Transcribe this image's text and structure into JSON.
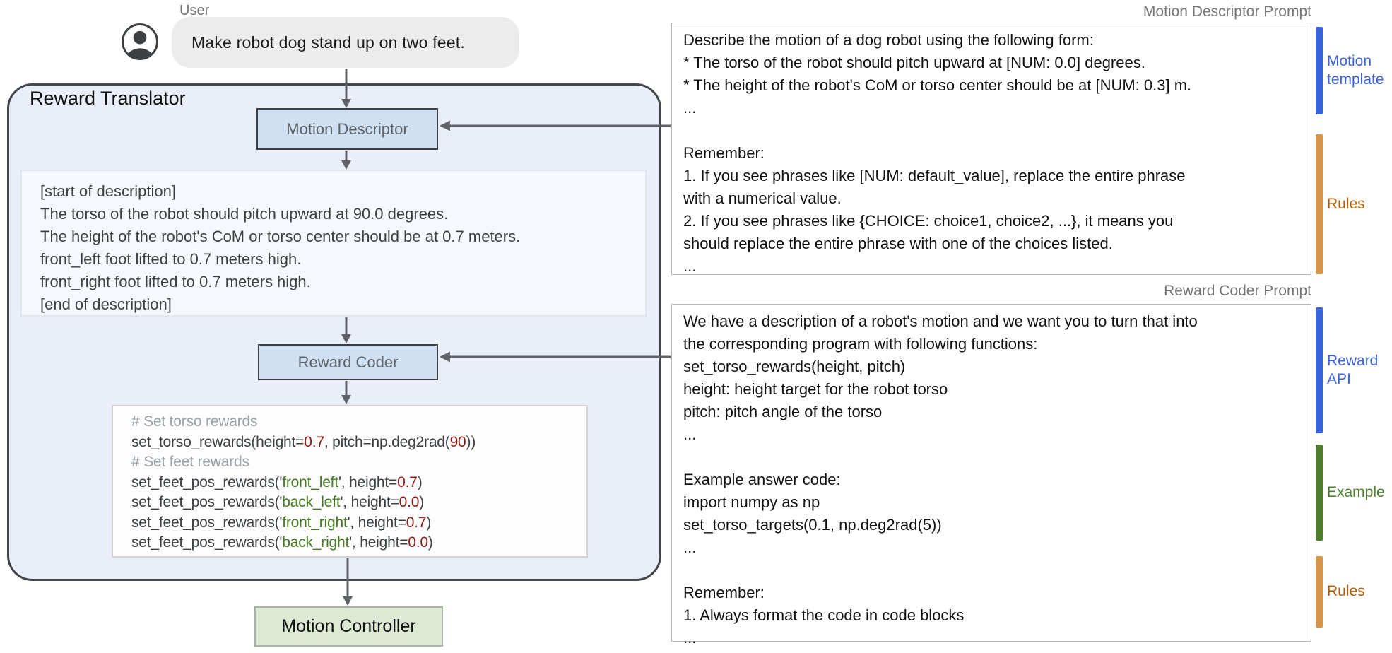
{
  "user": {
    "label": "User",
    "message": "Make robot dog stand up on two feet."
  },
  "reward_translator": {
    "title": "Reward Translator",
    "motion_descriptor_label": "Motion Descriptor",
    "reward_coder_label": "Reward Coder",
    "description_lines": [
      "[start of description]",
      "The torso of the robot should pitch upward at 90.0 degrees.",
      "The height of the robot's CoM or torso center should be at 0.7 meters.",
      "front_left foot lifted to 0.7 meters high.",
      "front_right foot lifted to 0.7 meters high.",
      "[end of description]"
    ],
    "code_lines": [
      [
        {
          "t": "# Set torso rewards",
          "c": "comment"
        }
      ],
      [
        {
          "t": "set_torso_rewards(height=",
          "c": "code"
        },
        {
          "t": "0.7",
          "c": "num"
        },
        {
          "t": ", pitch=np.deg2rad(",
          "c": "code"
        },
        {
          "t": "90",
          "c": "num"
        },
        {
          "t": "))",
          "c": "code"
        }
      ],
      [
        {
          "t": "# Set feet rewards",
          "c": "comment"
        }
      ],
      [
        {
          "t": "set_feet_pos_rewards('",
          "c": "code"
        },
        {
          "t": "front_left",
          "c": "str"
        },
        {
          "t": "', height=",
          "c": "code"
        },
        {
          "t": "0.7",
          "c": "num"
        },
        {
          "t": ")",
          "c": "code"
        }
      ],
      [
        {
          "t": "set_feet_pos_rewards('",
          "c": "code"
        },
        {
          "t": "back_left",
          "c": "str"
        },
        {
          "t": "', height=",
          "c": "code"
        },
        {
          "t": "0.0",
          "c": "num"
        },
        {
          "t": ")",
          "c": "code"
        }
      ],
      [
        {
          "t": "set_feet_pos_rewards('",
          "c": "code"
        },
        {
          "t": "front_right",
          "c": "str"
        },
        {
          "t": "', height=",
          "c": "code"
        },
        {
          "t": "0.7",
          "c": "num"
        },
        {
          "t": ")",
          "c": "code"
        }
      ],
      [
        {
          "t": "set_feet_pos_rewards('",
          "c": "code"
        },
        {
          "t": "back_right",
          "c": "str"
        },
        {
          "t": "', height=",
          "c": "code"
        },
        {
          "t": "0.0",
          "c": "num"
        },
        {
          "t": ")",
          "c": "code"
        }
      ]
    ]
  },
  "motion_controller_label": "Motion Controller",
  "descriptor_prompt": {
    "title": "Motion Descriptor Prompt",
    "lines": [
      "Describe the motion of a dog robot using the following form:",
      "* The torso of the robot should pitch upward at [NUM: 0.0] degrees.",
      "* The height of the robot's CoM or torso center should be at [NUM: 0.3] m.",
      "...",
      "",
      "Remember:",
      "1. If you see phrases like [NUM: default_value], replace the entire phrase",
      "with a numerical value.",
      "2. If you see phrases like {CHOICE: choice1, choice2, ...}, it means you",
      "should replace the entire phrase with one of the choices listed.",
      "..."
    ]
  },
  "coder_prompt": {
    "title": "Reward Coder Prompt",
    "lines": [
      "We have a description of a robot's motion and we want you to turn that into",
      "the corresponding program with following functions:",
      "set_torso_rewards(height, pitch)",
      "height: height target for the robot torso",
      "pitch: pitch angle of the torso",
      "...",
      "",
      "Example answer code:",
      "import numpy as np",
      "set_torso_targets(0.1, np.deg2rad(5))",
      "...",
      "",
      "Remember:",
      "1. Always format the code in code blocks",
      "..."
    ]
  },
  "annotations": [
    {
      "label": "Motion template",
      "bar_color": "#3b63d9",
      "text_color": "#3b63d9"
    },
    {
      "label": "Rules",
      "bar_color": "#d6944a",
      "text_color": "#b45f06"
    },
    {
      "label": "Reward API",
      "bar_color": "#3b63d9",
      "text_color": "#3b63d9"
    },
    {
      "label": "Example",
      "bar_color": "#4e7e2d",
      "text_color": "#4e7e2d"
    },
    {
      "label": "Rules",
      "bar_color": "#d6944a",
      "text_color": "#b45f06"
    }
  ],
  "colors": {
    "container_fill": "#e9eef8",
    "process_box_fill": "#cfe0f3",
    "controller_fill": "#dde9d2",
    "arrow": "#5f6368",
    "code_number": "#8f1b12",
    "code_string": "#457a20",
    "code_comment": "#9aa0a6"
  }
}
